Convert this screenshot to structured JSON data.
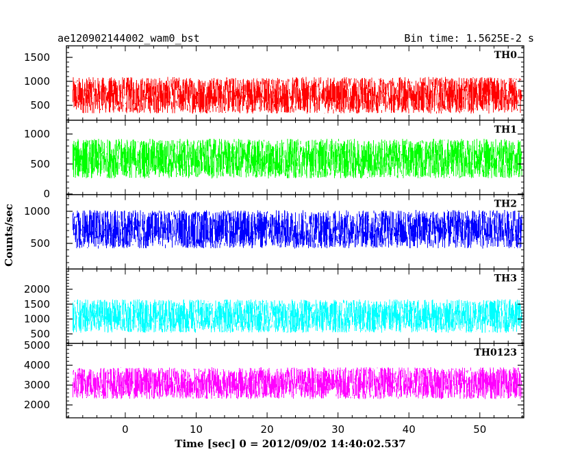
{
  "chart_data": {
    "type": "line",
    "title": "ae120902144002_wam0_bst",
    "bin_time": "Bin time: 1.5625E-2 s",
    "xlabel": "Time [sec] 0 = 2012/09/02 14:40:02.537",
    "ylabel": "Counts/sec",
    "xlim": [
      -8.3,
      56.2
    ],
    "data_xrange": [
      -7.4,
      55.9
    ],
    "x_ticks": [
      0,
      10,
      20,
      30,
      40,
      50
    ],
    "x_ticks_labels": [
      "0",
      "10",
      "20",
      "30",
      "40",
      "50"
    ],
    "grid": false,
    "panels": [
      {
        "name": "TH0",
        "color": "#ff0000",
        "ylim": [
          190,
          1740
        ],
        "y_ticks": [
          500,
          1000,
          1500
        ],
        "y_ticks_labels": [
          "500",
          "1000",
          "1500"
        ],
        "mean": 710,
        "spread": 380,
        "min": 200,
        "max": 1720
      },
      {
        "name": "TH1",
        "color": "#00ff00",
        "ylim": [
          -10,
          1230
        ],
        "y_ticks": [
          0,
          500,
          1000
        ],
        "y_ticks_labels": [
          "0",
          "500",
          "1000"
        ],
        "mean": 590,
        "spread": 330,
        "min": 80,
        "max": 1220
      },
      {
        "name": "TH2",
        "color": "#0000ff",
        "ylim": [
          100,
          1260
        ],
        "y_ticks": [
          500,
          1000
        ],
        "y_ticks_labels": [
          "500",
          "1000"
        ],
        "mean": 720,
        "spread": 300,
        "min": 110,
        "max": 1250
      },
      {
        "name": "TH3",
        "color": "#00ffff",
        "ylim": [
          180,
          2680
        ],
        "y_ticks": [
          500,
          1000,
          1500,
          2000
        ],
        "y_ticks_labels": [
          "500",
          "1000",
          "1500",
          "2000"
        ],
        "mean": 1100,
        "spread": 560,
        "min": 200,
        "max": 2650
      },
      {
        "name": "TH0123",
        "color": "#ff00ff",
        "ylim": [
          1350,
          5100
        ],
        "y_ticks": [
          2000,
          3000,
          4000,
          5000
        ],
        "y_ticks_labels": [
          "2000",
          "3000",
          "4000",
          "5000"
        ],
        "mean": 3100,
        "spread": 800,
        "min": 1400,
        "max": 5050
      }
    ]
  }
}
